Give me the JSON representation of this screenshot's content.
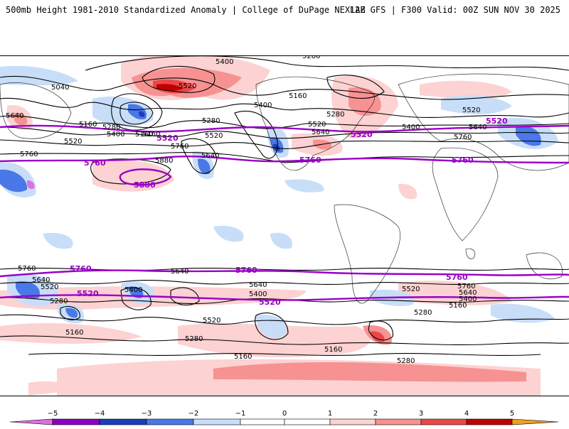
{
  "header": {
    "title": "500mb Height 1981-2010 Standardized Anomaly | College of DuPage NEXLAB",
    "run_info": "12Z GFS | F300 Valid: 00Z SUN NOV 30 2025"
  },
  "colors": {
    "neg5": "#e070e0",
    "neg4": "#8a00c0",
    "neg3": "#1a3fb8",
    "neg2": "#4a78e8",
    "neg1": "#c8def8",
    "zero": "#ffffff",
    "pos1": "#fcd2d2",
    "pos2": "#f79292",
    "pos3": "#e84848",
    "pos4": "#c00000",
    "pos5": "#f0a020",
    "contour": "#000000",
    "highlight": "#9a00c8"
  },
  "map": {
    "contour_labels": [
      "5400",
      "5280",
      "5040",
      "5520",
      "5160",
      "5640",
      "5280",
      "5400",
      "5160",
      "5520",
      "5760",
      "5640",
      "5880",
      "5760",
      "5160",
      "5280",
      "5400",
      "5520",
      "5640",
      "5520",
      "5160",
      "5280",
      "5640",
      "5760",
      "5400",
      "5520",
      "5640",
      "5760",
      "5640",
      "5520",
      "5280",
      "5400",
      "5640",
      "5520",
      "5280",
      "5160",
      "5160",
      "5280",
      "5400",
      "5520",
      "5760",
      "5640",
      "5400",
      "5160",
      "5160",
      "5280"
    ],
    "highlight_labels": [
      "5520",
      "5760",
      "5880",
      "5520",
      "5760",
      "5520",
      "5760",
      "5760",
      "5520",
      "5760",
      "5520",
      "5760"
    ]
  },
  "legend": {
    "ticks": [
      "−5",
      "−4",
      "−3",
      "−2",
      "−1",
      "0",
      "1",
      "2",
      "3",
      "4",
      "5"
    ]
  }
}
